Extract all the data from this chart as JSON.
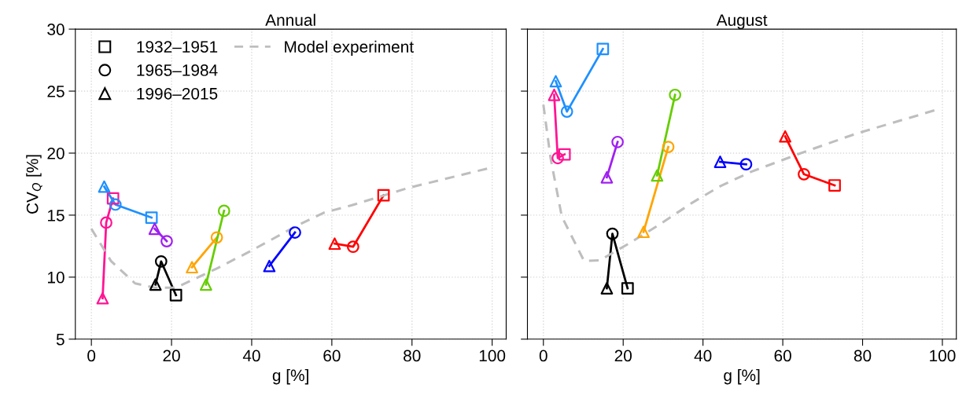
{
  "chart_data": [
    {
      "type": "line",
      "title": "Annual",
      "xlabel": "g [%]",
      "ylabel": "CV$_{Q}$ [%]",
      "xlim": [
        -4,
        103.5
      ],
      "ylim": [
        5,
        30
      ],
      "xticks": [
        0,
        20,
        40,
        60,
        80,
        100
      ],
      "yticks": [
        5,
        10,
        15,
        20,
        25,
        30
      ],
      "grid": true,
      "legend": "top left",
      "marker": "none",
      "line_style": "solid",
      "series": [
        {
          "color": "#ff1493",
          "x": [
            2.8,
            3.7,
            5.4
          ],
          "values": [
            8.3,
            14.4,
            16.35
          ]
        },
        {
          "color": "#1e90ff",
          "x": [
            3.2,
            6.0,
            15.0
          ],
          "values": [
            17.3,
            15.85,
            14.8
          ]
        },
        {
          "color": "#a020f0",
          "x": [
            15.8,
            18.8
          ],
          "values": [
            13.9,
            12.9
          ]
        },
        {
          "color": "#000000",
          "x": [
            16.0,
            17.4,
            21.1
          ],
          "values": [
            9.4,
            11.27,
            8.55
          ]
        },
        {
          "color": "#ffa500",
          "x": [
            25.1,
            31.3
          ],
          "values": [
            10.8,
            13.2
          ]
        },
        {
          "color": "#66cd00",
          "x": [
            28.6,
            33.1
          ],
          "values": [
            9.4,
            15.35
          ]
        },
        {
          "color": "#0000ff",
          "x": [
            44.4,
            50.8
          ],
          "values": [
            10.9,
            13.6
          ]
        },
        {
          "color": "#ff0000",
          "x": [
            60.7,
            65.3,
            72.9
          ],
          "values": [
            12.7,
            12.45,
            16.6
          ]
        },
        {
          "type": "scatter",
          "name": "1932–1951",
          "marker": "square",
          "color": "#000000",
          "x": [
            5.4,
            15.0,
            21.1,
            72.9
          ],
          "values": [
            16.35,
            14.8,
            8.55,
            16.6
          ],
          "colors": [
            "#ff1493",
            "#1e90ff",
            "#000000",
            "#ff0000"
          ]
        },
        {
          "type": "scatter",
          "name": "1965–1984",
          "marker": "circle",
          "color": "#000000",
          "x": [
            3.7,
            6.0,
            18.8,
            17.4,
            31.3,
            33.1,
            50.8,
            65.3
          ],
          "values": [
            14.4,
            15.85,
            12.9,
            11.27,
            13.2,
            15.35,
            13.6,
            12.45
          ],
          "colors": [
            "#ff1493",
            "#1e90ff",
            "#a020f0",
            "#000000",
            "#ffa500",
            "#66cd00",
            "#0000ff",
            "#ff0000"
          ]
        },
        {
          "type": "scatter",
          "name": "1996–2015",
          "marker": "triangle",
          "color": "#000000",
          "x": [
            2.8,
            3.2,
            15.8,
            16.0,
            25.1,
            28.6,
            44.4,
            60.7
          ],
          "values": [
            8.3,
            17.3,
            13.9,
            9.4,
            10.8,
            9.4,
            10.9,
            12.7
          ],
          "colors": [
            "#ff1493",
            "#1e90ff",
            "#a020f0",
            "#000000",
            "#ffa500",
            "#66cd00",
            "#0000ff",
            "#ff0000"
          ]
        },
        {
          "name": "Model experiment",
          "line_style": "dashed",
          "color": "#bebebe",
          "x": [
            0,
            4.9,
            10.9,
            15.8,
            21.1,
            31.3,
            39.7,
            51,
            58,
            65,
            79.1,
            100
          ],
          "values": [
            13.9,
            11.3,
            9.5,
            9.15,
            9.15,
            10.7,
            12.1,
            14.1,
            15.2,
            15.8,
            17.2,
            18.85
          ]
        }
      ]
    },
    {
      "type": "line",
      "title": "August",
      "xlabel": "g [%]",
      "xlim": [
        -4,
        103.5
      ],
      "ylim": [
        5,
        30
      ],
      "xticks": [
        0,
        20,
        40,
        60,
        80,
        100
      ],
      "yticks": [
        5,
        10,
        15,
        20,
        25,
        30
      ],
      "grid": true,
      "tick_labels": "x",
      "marker": "none",
      "line_style": "solid",
      "series": [
        {
          "color": "#ff1493",
          "x": [
            2.7,
            3.6,
            5.3
          ],
          "values": [
            24.7,
            19.6,
            19.9
          ]
        },
        {
          "color": "#1e90ff",
          "x": [
            3.1,
            5.9,
            14.9
          ],
          "values": [
            25.8,
            23.35,
            28.4
          ]
        },
        {
          "color": "#a020f0",
          "x": [
            15.9,
            18.6
          ],
          "values": [
            18.05,
            20.9
          ]
        },
        {
          "color": "#000000",
          "x": [
            15.9,
            17.3,
            21.1
          ],
          "values": [
            9.1,
            13.5,
            9.1
          ]
        },
        {
          "color": "#ffa500",
          "x": [
            25.1,
            31.3
          ],
          "values": [
            13.65,
            20.5
          ]
        },
        {
          "color": "#66cd00",
          "x": [
            28.5,
            33.0
          ],
          "values": [
            18.2,
            24.7
          ]
        },
        {
          "color": "#0000ff",
          "x": [
            44.3,
            50.8
          ],
          "values": [
            19.3,
            19.1
          ]
        },
        {
          "color": "#ff0000",
          "x": [
            60.6,
            65.3,
            73.0
          ],
          "values": [
            21.35,
            18.3,
            17.4
          ]
        },
        {
          "type": "scatter",
          "marker": "square",
          "color": "#000000",
          "x": [
            5.3,
            14.9,
            21.1,
            73.0
          ],
          "values": [
            19.9,
            28.4,
            9.1,
            17.4
          ],
          "colors": [
            "#ff1493",
            "#1e90ff",
            "#000000",
            "#ff0000"
          ]
        },
        {
          "type": "scatter",
          "marker": "circle",
          "color": "#000000",
          "x": [
            3.6,
            5.9,
            18.6,
            17.3,
            31.3,
            33.0,
            50.8,
            65.3
          ],
          "values": [
            19.6,
            23.35,
            20.9,
            13.5,
            20.5,
            24.7,
            19.1,
            18.3
          ],
          "colors": [
            "#ff1493",
            "#1e90ff",
            "#a020f0",
            "#000000",
            "#ffa500",
            "#66cd00",
            "#0000ff",
            "#ff0000"
          ]
        },
        {
          "type": "scatter",
          "marker": "triangle",
          "color": "#000000",
          "x": [
            2.7,
            3.1,
            15.9,
            15.9,
            25.1,
            28.5,
            44.3,
            60.6
          ],
          "values": [
            24.7,
            25.8,
            18.05,
            9.1,
            13.65,
            18.2,
            19.3,
            21.35
          ],
          "colors": [
            "#ff1493",
            "#1e90ff",
            "#a020f0",
            "#000000",
            "#ffa500",
            "#66cd00",
            "#0000ff",
            "#ff0000"
          ]
        },
        {
          "line_style": "dashed",
          "color": "#bebebe",
          "x": [
            0,
            1.8,
            4.6,
            10.2,
            14.1,
            21.1,
            28.9,
            37.3,
            44.4,
            52.1,
            64.1,
            78.2,
            99.6
          ],
          "values": [
            23.9,
            19.6,
            14.9,
            11.3,
            11.35,
            12.65,
            14.2,
            16.0,
            17.35,
            18.5,
            19.95,
            21.55,
            23.6
          ]
        }
      ]
    }
  ]
}
